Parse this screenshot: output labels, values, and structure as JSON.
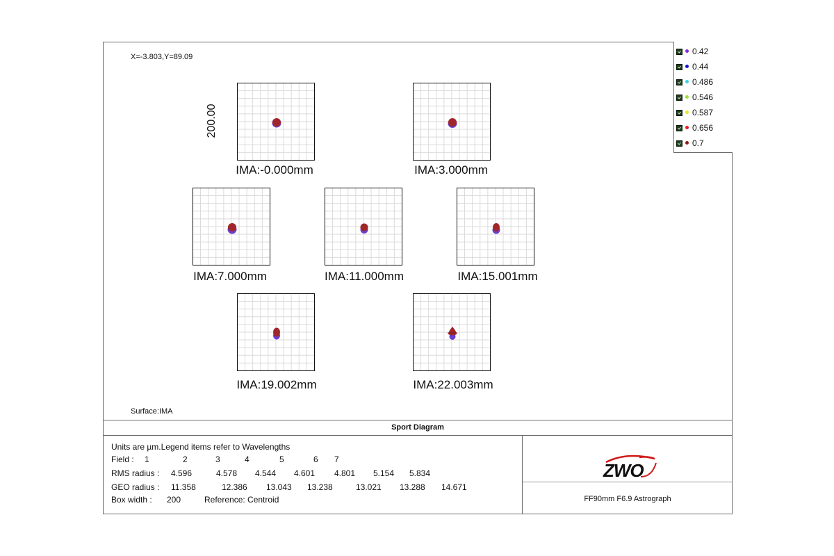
{
  "header": {
    "coordinate_readout": "X=-3.803,Y=89.09",
    "surface_label": "Surface:IMA"
  },
  "legend": [
    {
      "label": "0.42",
      "color": "#8a2be2"
    },
    {
      "label": "0.44",
      "color": "#1515d0"
    },
    {
      "label": "0.486",
      "color": "#35d6e6"
    },
    {
      "label": "0.546",
      "color": "#9be23a"
    },
    {
      "label": "0.587",
      "color": "#e8e82a"
    },
    {
      "label": "0.656",
      "color": "#ee1a1a"
    },
    {
      "label": "0.7",
      "color": "#8b1a1a"
    }
  ],
  "y_axis_label": "200.00",
  "fields": [
    {
      "label": "IMA:-0.000mm"
    },
    {
      "label": "IMA:3.000mm"
    },
    {
      "label": "IMA:7.000mm"
    },
    {
      "label": "IMA:11.000mm"
    },
    {
      "label": "IMA:15.001mm"
    },
    {
      "label": "IMA:19.002mm"
    },
    {
      "label": "IMA:22.003mm"
    }
  ],
  "diagram_title": "Sport Diagram",
  "info": {
    "units": "Units are µm.Legend items refer to Wavelengths",
    "field_label": "Field :",
    "field_numbers": [
      "1",
      "2",
      "3",
      "4",
      "5",
      "6",
      "7"
    ],
    "rms_label": "RMS radius :",
    "rms_values": [
      "4.596",
      "4.578",
      "4.544",
      "4.601",
      "4.801",
      "5.154",
      "5.834"
    ],
    "geo_label": "GEO radius :",
    "geo_values": [
      "11.358",
      "12.386",
      "13.043",
      "13.238",
      "13.021",
      "13.288",
      "14.671"
    ],
    "box_width_label": "Box width :",
    "box_width_value": "200",
    "reference": "Reference: Centroid"
  },
  "logo_text": "ZWO",
  "product_name": "FF90mm F6.9 Astrograph"
}
